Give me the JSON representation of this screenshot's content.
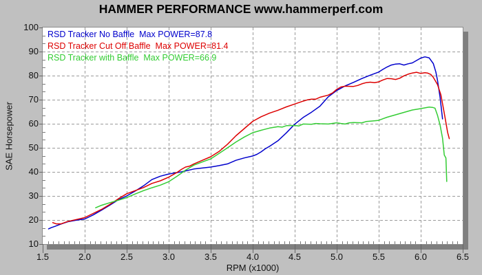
{
  "window": {
    "background": "#c0c0c0"
  },
  "chart_data": {
    "type": "line",
    "title": "HAMMER PERFORMANCE www.hammerperf.com",
    "xlabel": "RPM (x1000)",
    "ylabel": "SAE Horsepower",
    "xlim": [
      1.5,
      6.5
    ],
    "ylim": [
      10,
      100
    ],
    "xticks": [
      1.5,
      2.0,
      2.5,
      3.0,
      3.5,
      4.0,
      4.5,
      5.0,
      5.5,
      6.0,
      6.5
    ],
    "xtick_labels": [
      "1.5",
      "2.0",
      "2.5",
      "3.0",
      "3.5",
      "4.0",
      "4.5",
      "5.0",
      "5.5",
      "6.0",
      "6.5"
    ],
    "yticks": [
      10,
      20,
      30,
      40,
      50,
      60,
      70,
      80,
      90,
      100
    ],
    "grid": "dashed",
    "grid_color": "#999999",
    "plot_background": "#ffffff",
    "shadow_color": "#7f7f7f",
    "legend_position": "top-left-inside",
    "series": [
      {
        "label": "RSD Tracker No Baffle  Max POWER=87.8",
        "max_power": 87.8,
        "color": "#0000cc",
        "points": [
          [
            1.57,
            16.3
          ],
          [
            1.6,
            16.8
          ],
          [
            1.65,
            17.4
          ],
          [
            1.7,
            18.1
          ],
          [
            1.75,
            18.7
          ],
          [
            1.8,
            19.3
          ],
          [
            1.9,
            19.9
          ],
          [
            2.0,
            20.4
          ],
          [
            2.1,
            22.1
          ],
          [
            2.2,
            24.1
          ],
          [
            2.3,
            26.2
          ],
          [
            2.4,
            28.4
          ],
          [
            2.5,
            30.0
          ],
          [
            2.6,
            32.0
          ],
          [
            2.7,
            34.2
          ],
          [
            2.8,
            36.8
          ],
          [
            2.9,
            38.2
          ],
          [
            3.0,
            39.1
          ],
          [
            3.1,
            39.7
          ],
          [
            3.15,
            40.0
          ],
          [
            3.2,
            40.4
          ],
          [
            3.3,
            41.2
          ],
          [
            3.4,
            41.6
          ],
          [
            3.5,
            42.0
          ],
          [
            3.6,
            42.6
          ],
          [
            3.7,
            43.3
          ],
          [
            3.8,
            44.8
          ],
          [
            3.9,
            45.8
          ],
          [
            4.0,
            46.6
          ],
          [
            4.05,
            47.3
          ],
          [
            4.1,
            48.3
          ],
          [
            4.15,
            49.6
          ],
          [
            4.2,
            50.6
          ],
          [
            4.3,
            52.9
          ],
          [
            4.4,
            56.2
          ],
          [
            4.5,
            59.8
          ],
          [
            4.6,
            62.6
          ],
          [
            4.7,
            64.8
          ],
          [
            4.8,
            67.3
          ],
          [
            4.9,
            71.2
          ],
          [
            5.0,
            73.8
          ],
          [
            5.1,
            75.7
          ],
          [
            5.2,
            77.2
          ],
          [
            5.3,
            78.8
          ],
          [
            5.4,
            80.2
          ],
          [
            5.5,
            81.5
          ],
          [
            5.55,
            82.6
          ],
          [
            5.6,
            83.6
          ],
          [
            5.65,
            84.4
          ],
          [
            5.7,
            84.8
          ],
          [
            5.75,
            84.9
          ],
          [
            5.8,
            84.4
          ],
          [
            5.85,
            84.9
          ],
          [
            5.9,
            85.3
          ],
          [
            5.95,
            86.3
          ],
          [
            6.0,
            87.3
          ],
          [
            6.05,
            87.8
          ],
          [
            6.1,
            87.4
          ],
          [
            6.15,
            85.0
          ],
          [
            6.18,
            81.5
          ],
          [
            6.2,
            78.0
          ],
          [
            6.23,
            71.0
          ],
          [
            6.26,
            62.0
          ]
        ]
      },
      {
        "label": "RSD Tracker Cut Off Baffle  Max POWER=81.4",
        "max_power": 81.4,
        "color": "#dd0000",
        "points": [
          [
            1.62,
            18.9
          ],
          [
            1.66,
            18.4
          ],
          [
            1.72,
            18.4
          ],
          [
            1.8,
            19.4
          ],
          [
            1.9,
            20.2
          ],
          [
            2.0,
            21.0
          ],
          [
            2.1,
            22.7
          ],
          [
            2.2,
            24.4
          ],
          [
            2.3,
            26.5
          ],
          [
            2.4,
            28.8
          ],
          [
            2.5,
            30.9
          ],
          [
            2.6,
            32.2
          ],
          [
            2.7,
            33.5
          ],
          [
            2.8,
            35.2
          ],
          [
            2.9,
            36.3
          ],
          [
            3.0,
            37.8
          ],
          [
            3.1,
            39.8
          ],
          [
            3.15,
            41.0
          ],
          [
            3.2,
            42.0
          ],
          [
            3.25,
            42.4
          ],
          [
            3.3,
            43.3
          ],
          [
            3.4,
            44.8
          ],
          [
            3.5,
            46.3
          ],
          [
            3.6,
            48.5
          ],
          [
            3.7,
            51.5
          ],
          [
            3.8,
            55.0
          ],
          [
            3.9,
            58.0
          ],
          [
            4.0,
            61.0
          ],
          [
            4.1,
            62.9
          ],
          [
            4.2,
            64.4
          ],
          [
            4.3,
            65.6
          ],
          [
            4.4,
            67.0
          ],
          [
            4.5,
            68.2
          ],
          [
            4.6,
            69.4
          ],
          [
            4.65,
            69.9
          ],
          [
            4.7,
            70.2
          ],
          [
            4.75,
            70.2
          ],
          [
            4.8,
            71.0
          ],
          [
            4.9,
            71.9
          ],
          [
            4.95,
            72.8
          ],
          [
            5.0,
            74.3
          ],
          [
            5.05,
            75.3
          ],
          [
            5.1,
            75.6
          ],
          [
            5.2,
            75.5
          ],
          [
            5.25,
            75.9
          ],
          [
            5.3,
            76.6
          ],
          [
            5.35,
            77.1
          ],
          [
            5.4,
            77.3
          ],
          [
            5.45,
            77.1
          ],
          [
            5.5,
            77.4
          ],
          [
            5.55,
            78.2
          ],
          [
            5.6,
            78.8
          ],
          [
            5.65,
            78.7
          ],
          [
            5.7,
            78.4
          ],
          [
            5.75,
            78.9
          ],
          [
            5.8,
            79.9
          ],
          [
            5.85,
            80.6
          ],
          [
            5.9,
            81.1
          ],
          [
            5.95,
            81.4
          ],
          [
            6.0,
            80.9
          ],
          [
            6.05,
            81.2
          ],
          [
            6.08,
            81.1
          ],
          [
            6.12,
            80.5
          ],
          [
            6.15,
            79.3
          ],
          [
            6.2,
            76.3
          ],
          [
            6.24,
            72.0
          ],
          [
            6.27,
            66.5
          ],
          [
            6.3,
            60.5
          ],
          [
            6.32,
            56.5
          ],
          [
            6.34,
            53.8
          ]
        ]
      },
      {
        "label": "RSD Tracker with Baffle  Max POWER=66.9",
        "max_power": 66.9,
        "color": "#33cc33",
        "points": [
          [
            2.13,
            25.1
          ],
          [
            2.2,
            26.1
          ],
          [
            2.3,
            27.2
          ],
          [
            2.4,
            28.2
          ],
          [
            2.5,
            29.3
          ],
          [
            2.6,
            30.8
          ],
          [
            2.7,
            32.2
          ],
          [
            2.8,
            33.4
          ],
          [
            2.9,
            34.5
          ],
          [
            3.0,
            35.9
          ],
          [
            3.1,
            38.2
          ],
          [
            3.2,
            40.7
          ],
          [
            3.3,
            42.8
          ],
          [
            3.4,
            44.1
          ],
          [
            3.5,
            45.4
          ],
          [
            3.6,
            47.7
          ],
          [
            3.7,
            50.0
          ],
          [
            3.8,
            52.4
          ],
          [
            3.9,
            54.5
          ],
          [
            4.0,
            56.3
          ],
          [
            4.1,
            57.3
          ],
          [
            4.2,
            58.2
          ],
          [
            4.3,
            58.8
          ],
          [
            4.35,
            58.6
          ],
          [
            4.4,
            59.2
          ],
          [
            4.5,
            59.3
          ],
          [
            4.55,
            59.1
          ],
          [
            4.6,
            59.9
          ],
          [
            4.7,
            59.8
          ],
          [
            4.75,
            60.1
          ],
          [
            4.8,
            60.0
          ],
          [
            4.9,
            59.9
          ],
          [
            5.0,
            60.4
          ],
          [
            5.05,
            60.1
          ],
          [
            5.1,
            59.9
          ],
          [
            5.15,
            60.4
          ],
          [
            5.2,
            60.5
          ],
          [
            5.3,
            60.4
          ],
          [
            5.35,
            60.9
          ],
          [
            5.4,
            61.1
          ],
          [
            5.5,
            61.4
          ],
          [
            5.55,
            62.1
          ],
          [
            5.6,
            62.7
          ],
          [
            5.7,
            63.7
          ],
          [
            5.8,
            64.7
          ],
          [
            5.9,
            65.7
          ],
          [
            6.0,
            66.3
          ],
          [
            6.05,
            66.6
          ],
          [
            6.1,
            66.9
          ],
          [
            6.14,
            66.8
          ],
          [
            6.17,
            66.5
          ],
          [
            6.2,
            63.5
          ],
          [
            6.23,
            59.5
          ],
          [
            6.26,
            54.0
          ],
          [
            6.28,
            47.0
          ],
          [
            6.3,
            45.8
          ],
          [
            6.31,
            36.0
          ]
        ]
      }
    ]
  }
}
